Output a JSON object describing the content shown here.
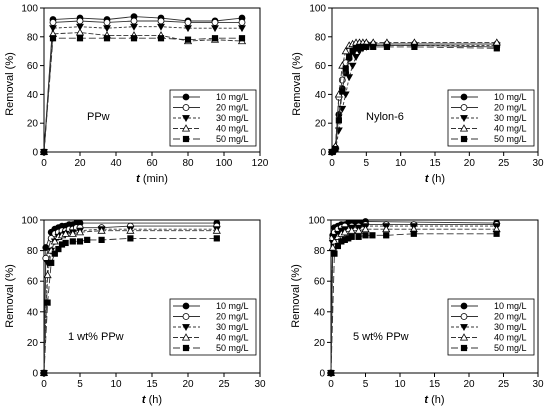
{
  "chart_data": [
    {
      "type": "line",
      "annotation": "PPw",
      "xlabel_var": "t",
      "xlabel_unit": " (min)",
      "ylabel": "Removal (%)",
      "xlim": [
        0,
        120
      ],
      "ylim": [
        0,
        100
      ],
      "xticks": [
        0,
        20,
        40,
        60,
        80,
        100,
        120
      ],
      "yticks": [
        0,
        20,
        40,
        60,
        80,
        100
      ],
      "legend_position": "lower-right",
      "series": [
        {
          "name": "10 mg/L",
          "x": [
            0,
            5,
            20,
            35,
            50,
            65,
            80,
            95,
            110
          ],
          "y": [
            0,
            92,
            93,
            92,
            94,
            93,
            91,
            91,
            93
          ]
        },
        {
          "name": "20 mg/L",
          "x": [
            0,
            5,
            20,
            35,
            50,
            65,
            80,
            95,
            110
          ],
          "y": [
            0,
            90,
            91,
            90,
            91,
            91,
            90,
            90,
            90
          ]
        },
        {
          "name": "30 mg/L",
          "x": [
            0,
            5,
            20,
            35,
            50,
            65,
            80,
            95,
            110
          ],
          "y": [
            0,
            86,
            87,
            86,
            87,
            87,
            86,
            86,
            86
          ]
        },
        {
          "name": "40 mg/L",
          "x": [
            0,
            5,
            20,
            35,
            50,
            65,
            80,
            95,
            110
          ],
          "y": [
            0,
            82,
            83,
            81,
            81,
            81,
            77,
            78,
            77
          ]
        },
        {
          "name": "50 mg/L",
          "x": [
            0,
            5,
            20,
            35,
            50,
            65,
            80,
            95,
            110
          ],
          "y": [
            0,
            79,
            79,
            79,
            79,
            79,
            78,
            79,
            79
          ]
        }
      ]
    },
    {
      "type": "line",
      "annotation": "Nylon-6",
      "xlabel_var": "t",
      "xlabel_unit": " (h)",
      "ylabel": "Removal (%)",
      "xlim": [
        0,
        30
      ],
      "ylim": [
        0,
        100
      ],
      "xticks": [
        0,
        5,
        10,
        15,
        20,
        25,
        30
      ],
      "yticks": [
        0,
        20,
        40,
        60,
        80,
        100
      ],
      "legend_position": "lower-right",
      "series": [
        {
          "name": "10 mg/L",
          "x": [
            0,
            0.5,
            1,
            1.5,
            2,
            2.5,
            3,
            3.5,
            4,
            4.5,
            5,
            6,
            8,
            12,
            24
          ],
          "y": [
            0,
            2,
            26,
            44,
            55,
            65,
            70,
            72,
            73,
            73,
            74,
            74,
            74,
            74,
            73
          ]
        },
        {
          "name": "20 mg/L",
          "x": [
            0,
            0.5,
            1,
            1.5,
            2,
            2.5,
            3,
            3.5,
            4,
            4.5,
            5,
            6,
            8,
            12,
            24
          ],
          "y": [
            0,
            3,
            38,
            50,
            62,
            70,
            73,
            74,
            74,
            75,
            75,
            75,
            75,
            75,
            75
          ]
        },
        {
          "name": "30 mg/L",
          "x": [
            0,
            0.5,
            1,
            1.5,
            2,
            2.5,
            3,
            3.5,
            4,
            4.5,
            5,
            6,
            8,
            12,
            24
          ],
          "y": [
            0,
            1,
            15,
            30,
            40,
            52,
            60,
            66,
            70,
            72,
            73,
            74,
            74,
            74,
            74
          ]
        },
        {
          "name": "40 mg/L",
          "x": [
            0,
            0.5,
            1,
            1.5,
            2,
            2.5,
            3,
            3.5,
            4,
            4.5,
            5,
            6,
            8,
            12,
            24
          ],
          "y": [
            0,
            4,
            40,
            60,
            70,
            74,
            75,
            76,
            76,
            76,
            76,
            76,
            76,
            76,
            76
          ]
        },
        {
          "name": "50 mg/L",
          "x": [
            0,
            0.5,
            1,
            1.5,
            2,
            2.5,
            3,
            3.5,
            4,
            4.5,
            5,
            6,
            8,
            12,
            24
          ],
          "y": [
            0,
            2,
            22,
            42,
            58,
            66,
            70,
            72,
            73,
            73,
            73,
            73,
            73,
            73,
            72
          ]
        }
      ]
    },
    {
      "type": "line",
      "annotation": "1 wt% PPw",
      "xlabel_var": "t",
      "xlabel_unit": " (h)",
      "ylabel": "Removal (%)",
      "xlim": [
        0,
        30
      ],
      "ylim": [
        0,
        100
      ],
      "xticks": [
        0,
        5,
        10,
        15,
        20,
        25,
        30
      ],
      "yticks": [
        0,
        20,
        40,
        60,
        80,
        100
      ],
      "legend_position": "lower-right",
      "series": [
        {
          "name": "10 mg/L",
          "x": [
            0,
            0.25,
            1,
            1.5,
            2,
            2.5,
            3,
            3.5,
            4,
            4.5,
            5,
            24
          ],
          "y": [
            0,
            82,
            92,
            94,
            95,
            96,
            96,
            97,
            97,
            98,
            98,
            98
          ]
        },
        {
          "name": "20 mg/L",
          "x": [
            0,
            0.25,
            1,
            1.5,
            2,
            2.5,
            3,
            3.5,
            4,
            4.5,
            5,
            8,
            12,
            24
          ],
          "y": [
            0,
            75,
            88,
            91,
            92,
            93,
            93,
            94,
            94,
            95,
            95,
            95,
            96,
            96
          ]
        },
        {
          "name": "30 mg/L",
          "x": [
            0,
            0.5,
            1,
            1.5,
            2,
            2.5,
            3,
            4,
            5,
            8,
            12,
            24
          ],
          "y": [
            0,
            72,
            80,
            86,
            89,
            90,
            91,
            92,
            93,
            94,
            94,
            94
          ]
        },
        {
          "name": "40 mg/L",
          "x": [
            0,
            0.5,
            1,
            1.5,
            2,
            2.5,
            3,
            4,
            5,
            8,
            12,
            24
          ],
          "y": [
            0,
            64,
            80,
            86,
            89,
            90,
            91,
            91,
            92,
            93,
            93,
            93
          ]
        },
        {
          "name": "50 mg/L",
          "x": [
            0,
            0.5,
            1,
            1.5,
            2,
            2.5,
            3,
            4,
            5,
            6,
            8,
            12,
            24
          ],
          "y": [
            0,
            46,
            72,
            78,
            81,
            84,
            85,
            86,
            86,
            87,
            87,
            88,
            88
          ]
        }
      ]
    },
    {
      "type": "line",
      "annotation": "5 wt% PPw",
      "xlabel_var": "t",
      "xlabel_unit": " (h)",
      "ylabel": "Removal (%)",
      "xlim": [
        0,
        30
      ],
      "ylim": [
        0,
        100
      ],
      "xticks": [
        0,
        5,
        10,
        15,
        20,
        25,
        30
      ],
      "yticks": [
        0,
        20,
        40,
        60,
        80,
        100
      ],
      "legend_position": "lower-right",
      "series": [
        {
          "name": "10 mg/L",
          "x": [
            0,
            0.25,
            0.5,
            1,
            1.5,
            2,
            2.5,
            3,
            3.5,
            4,
            4.5,
            5,
            24
          ],
          "y": [
            0,
            90,
            95,
            96,
            97,
            97,
            98,
            98,
            98,
            98,
            98,
            99,
            98
          ]
        },
        {
          "name": "20 mg/L",
          "x": [
            0,
            0.25,
            0.5,
            1,
            1.5,
            2,
            3,
            4,
            5,
            8,
            12,
            24
          ],
          "y": [
            0,
            88,
            92,
            94,
            95,
            96,
            96,
            96,
            97,
            97,
            97,
            97
          ]
        },
        {
          "name": "30 mg/L",
          "x": [
            0,
            0.25,
            0.5,
            1,
            1.5,
            2,
            3,
            4,
            5,
            8,
            12,
            24
          ],
          "y": [
            0,
            85,
            89,
            91,
            93,
            94,
            95,
            95,
            96,
            96,
            96,
            96
          ]
        },
        {
          "name": "40 mg/L",
          "x": [
            0,
            0.25,
            0.5,
            1,
            1.5,
            2,
            3,
            4,
            5,
            8,
            12,
            24
          ],
          "y": [
            0,
            82,
            86,
            89,
            91,
            92,
            93,
            93,
            94,
            94,
            94,
            94
          ]
        },
        {
          "name": "50 mg/L",
          "x": [
            0,
            0.5,
            1,
            1.5,
            2,
            2.5,
            3,
            4,
            5,
            6,
            8,
            12,
            24
          ],
          "y": [
            0,
            78,
            83,
            86,
            87,
            88,
            89,
            89,
            90,
            90,
            90,
            91,
            91
          ]
        }
      ]
    }
  ],
  "series_styles": [
    {
      "marker": "circle-filled",
      "dash": ""
    },
    {
      "marker": "circle-open",
      "dash": ""
    },
    {
      "marker": "triangle-down-filled",
      "dash": "3,2"
    },
    {
      "marker": "triangle-up-open",
      "dash": "5,2"
    },
    {
      "marker": "square-filled",
      "dash": "7,3"
    }
  ],
  "colors": {
    "ink": "#000000",
    "line": "#333333",
    "background": "#ffffff"
  }
}
